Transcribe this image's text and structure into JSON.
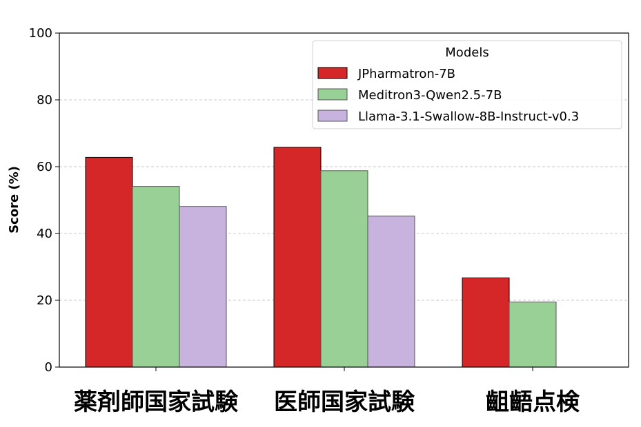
{
  "chart_data": {
    "type": "bar",
    "categories": [
      "薬剤師国家試験",
      "医師国家試験",
      "齟齬点検"
    ],
    "series": [
      {
        "name": "JPharmatron-7B",
        "values": [
          62.8,
          65.8,
          26.7
        ],
        "color": "#d62728"
      },
      {
        "name": "Meditron3-Qwen2.5-7B",
        "values": [
          54.1,
          58.8,
          19.5
        ],
        "color": "#98d095"
      },
      {
        "name": "Llama-3.1-Swallow-8B-Instruct-v0.3",
        "values": [
          48.1,
          45.2,
          null
        ],
        "color": "#c8b3de"
      }
    ],
    "title": "",
    "xlabel": "",
    "ylabel": "Score (%)",
    "ylim": [
      0,
      100
    ],
    "yticks": [
      "0",
      "20",
      "40",
      "60",
      "80",
      "100"
    ],
    "grid": "horizontal dashed",
    "legend": {
      "title": "Models",
      "placement": "top-right"
    }
  }
}
